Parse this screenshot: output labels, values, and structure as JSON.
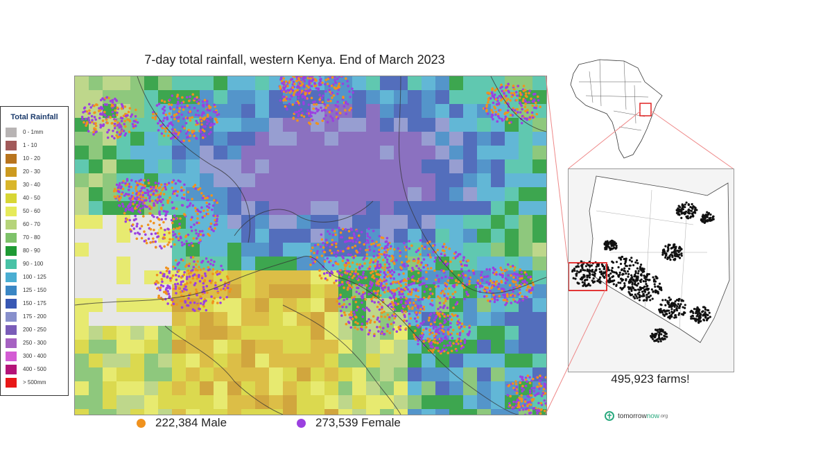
{
  "title": "7-day total rainfall, western Kenya.  End of March 2023",
  "legend": {
    "title": "Total Rainfall",
    "items": [
      {
        "label": "0 - 1mm",
        "color": "#b8b4b4"
      },
      {
        "label": "1 - 10",
        "color": "#a25a5a"
      },
      {
        "label": "10 - 20",
        "color": "#b8741e"
      },
      {
        "label": "20 - 30",
        "color": "#cc9a20"
      },
      {
        "label": "30 - 40",
        "color": "#d9b62a"
      },
      {
        "label": "40 - 50",
        "color": "#d8d634"
      },
      {
        "label": "50 - 60",
        "color": "#e6ea5a"
      },
      {
        "label": "60 - 70",
        "color": "#b6d47a"
      },
      {
        "label": "70 - 80",
        "color": "#7ec26a"
      },
      {
        "label": "80 - 90",
        "color": "#1e9a34"
      },
      {
        "label": "90 - 100",
        "color": "#48c2a6"
      },
      {
        "label": "100 - 125",
        "color": "#4aaed2"
      },
      {
        "label": "125 - 150",
        "color": "#3a86c4"
      },
      {
        "label": "150 - 175",
        "color": "#3858b4"
      },
      {
        "label": "175 - 200",
        "color": "#8890cc"
      },
      {
        "label": "200 - 250",
        "color": "#7a5cb8"
      },
      {
        "label": "250 - 300",
        "color": "#a662c2"
      },
      {
        "label": "300 - 400",
        "color": "#d45cd4"
      },
      {
        "label": "400 - 500",
        "color": "#b41478"
      },
      {
        "label": "> 500mm",
        "color": "#e81818"
      }
    ]
  },
  "counts": {
    "male": {
      "label": "222,384 Male",
      "color": "#f0921e"
    },
    "female": {
      "label": "273,539 Female",
      "color": "#9b40e0"
    }
  },
  "farms_label": "495,923 farms!",
  "logo": {
    "text_main": "tomorrow",
    "text_light": "now",
    "text_suffix": ".org",
    "color": "#29a97e"
  },
  "highlight_color": "#e02020"
}
